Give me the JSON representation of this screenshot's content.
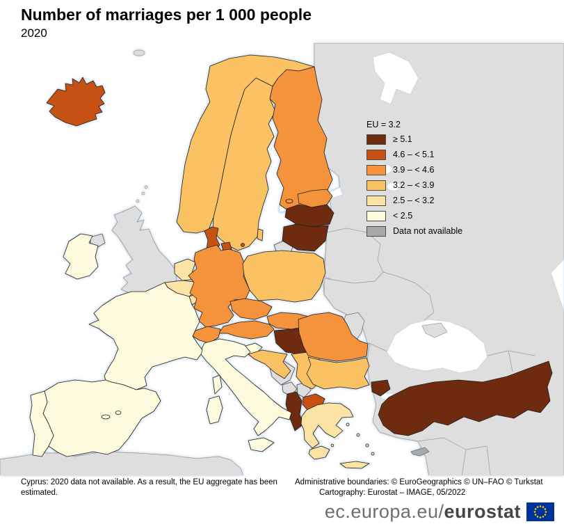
{
  "title": "Number of marriages per 1 000 people",
  "subtitle": "2020",
  "legend": {
    "eu_label": "EU = 3.2",
    "classes": [
      {
        "key": "c1",
        "label": "≥ 5.1"
      },
      {
        "key": "c2",
        "label": "4.6 – < 5.1"
      },
      {
        "key": "c3",
        "label": "3.9 – < 4.6"
      },
      {
        "key": "c4",
        "label": "3.2 – < 3.9"
      },
      {
        "key": "c5",
        "label": "2.5 – < 3.2"
      },
      {
        "key": "c6",
        "label": "< 2.5"
      },
      {
        "key": "na",
        "label": "Data not available"
      }
    ]
  },
  "palette": {
    "c1": "#6E2B10",
    "c2": "#C75113",
    "c3": "#F5923C",
    "c4": "#FAC263",
    "c5": "#FBE3A5",
    "c6": "#FEFADE",
    "na": "#A9A9A9",
    "outside": "#DEDEDE",
    "sea": "#FFFFFF"
  },
  "map": {
    "regions": {
      "iceland": "c2",
      "norway": "c4",
      "sweden": "c4",
      "finland": "c3",
      "estonia": "c3",
      "latvia": "c1",
      "lithuania": "c1",
      "denmark": "c2",
      "ireland": "c6",
      "united_kingdom": "outside",
      "netherlands": "c5",
      "belgium": "c5",
      "luxembourg": "c5",
      "germany": "c3",
      "poland": "c4",
      "czechia": "c3",
      "slovakia": "c3",
      "austria": "c3",
      "switzerland": "c3",
      "hungary": "c1",
      "slovenia": "c6",
      "croatia": "c4",
      "serbia": "c4",
      "bosnia_herzegovina": "outside",
      "montenegro": "outside",
      "kosovo": "outside",
      "north_macedonia": "c2",
      "albania": "c1",
      "greece": "c5",
      "italy": "c6",
      "france": "c6",
      "spain": "c6",
      "portugal": "c6",
      "romania": "c3",
      "bulgaria": "c4",
      "moldova": "outside",
      "belarus": "outside",
      "ukraine": "outside",
      "turkey": "c1",
      "cyprus": "na",
      "east_landmass": "outside",
      "north_africa": "outside",
      "kaliningrad": "outside",
      "crimea": "outside",
      "gotland": "c4",
      "svalbard_islet": "outside",
      "shetland": "outside"
    }
  },
  "footnotes": {
    "left": "Cyprus: 2020 data not available. As a result, the EU aggregate has been estimated.",
    "right_line1": "Administrative boundaries: © EuroGeographics © UN–FAO © Turkstat",
    "right_line2": "Cartography: Eurostat – IMAGE, 05/2022"
  },
  "logo": {
    "prefix": "ec.europa.eu/",
    "bold": "eurostat"
  }
}
